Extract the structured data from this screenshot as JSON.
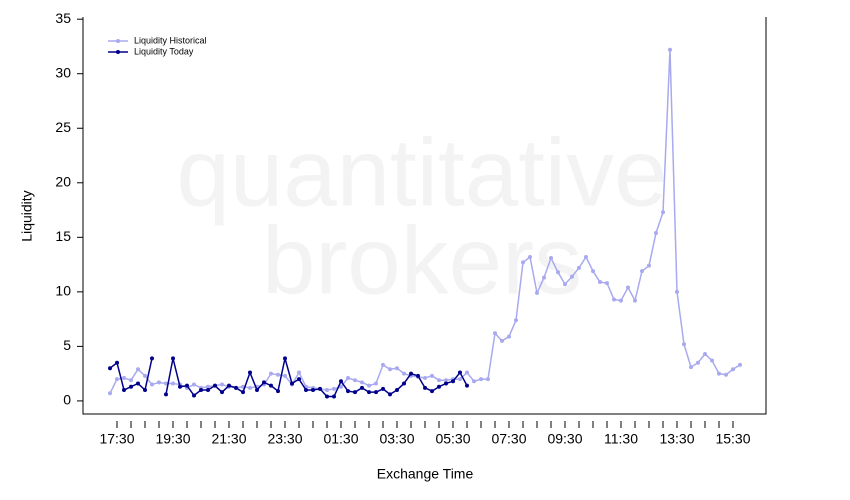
{
  "chart_data": {
    "type": "line",
    "watermark": [
      "quantitative",
      "brokers"
    ],
    "xlabel": "Exchange Time",
    "ylabel": "Liquidity",
    "categories": [
      null,
      "17:30",
      null,
      null,
      null,
      null,
      null,
      null,
      null,
      "19:30",
      null,
      null,
      null,
      null,
      null,
      null,
      null,
      "21:30",
      null,
      null,
      null,
      null,
      null,
      null,
      null,
      "23:30",
      null,
      null,
      null,
      null,
      null,
      null,
      null,
      "01:30",
      null,
      null,
      null,
      null,
      null,
      null,
      null,
      "03:30",
      null,
      null,
      null,
      null,
      null,
      null,
      null,
      "05:30",
      null,
      null,
      null,
      null,
      null,
      null,
      null,
      "07:30",
      null,
      null,
      null,
      null,
      null,
      null,
      null,
      "09:30",
      null,
      null,
      null,
      null,
      null,
      null,
      null,
      "11:30",
      null,
      null,
      null,
      null,
      null,
      null,
      null,
      "13:30",
      null,
      null,
      null,
      null,
      null,
      null,
      null,
      "15:30",
      null
    ],
    "series": [
      {
        "name": "Liquidity Historical",
        "color": "#a9a9f0",
        "values": [
          0.7,
          2.0,
          2.1,
          1.9,
          2.9,
          2.3,
          1.5,
          1.7,
          1.6,
          1.6,
          1.5,
          1.2,
          1.5,
          1.2,
          1.3,
          1.4,
          1.5,
          1.3,
          1.2,
          1.3,
          1.2,
          1.3,
          1.5,
          2.5,
          2.4,
          2.3,
          1.5,
          2.6,
          1.3,
          1.2,
          1.1,
          1.0,
          1.1,
          1.3,
          2.1,
          1.9,
          1.7,
          1.4,
          1.6,
          3.3,
          2.9,
          3.0,
          2.5,
          2.3,
          2.2,
          2.1,
          2.3,
          1.9,
          1.9,
          2.0,
          2.0,
          2.6,
          1.8,
          2.0,
          2.0,
          6.2,
          5.5,
          5.9,
          7.4,
          12.7,
          13.2,
          9.9,
          11.3,
          13.1,
          11.8,
          10.7,
          11.4,
          12.2,
          13.2,
          11.9,
          10.9,
          10.8,
          9.3,
          9.2,
          10.4,
          9.2,
          11.9,
          12.4,
          15.4,
          17.3,
          32.2,
          10.0,
          5.2,
          3.1,
          3.5,
          4.3,
          3.7,
          2.5,
          2.4,
          2.9,
          3.3
        ]
      },
      {
        "name": "Liquidity Today",
        "color": "#00008b",
        "values": [
          3.0,
          3.5,
          1.0,
          1.3,
          1.6,
          1.0,
          3.9,
          null,
          0.6,
          3.9,
          1.3,
          1.4,
          0.5,
          1.0,
          1.0,
          1.4,
          0.8,
          1.4,
          1.2,
          0.8,
          2.6,
          1.0,
          1.7,
          1.4,
          0.9,
          3.9,
          1.6,
          2.0,
          1.0,
          1.0,
          1.1,
          0.4,
          0.4,
          1.8,
          0.9,
          0.8,
          1.2,
          0.8,
          0.8,
          1.1,
          0.6,
          1.0,
          1.6,
          2.5,
          2.3,
          1.2,
          0.9,
          1.3,
          1.6,
          1.8,
          2.6,
          1.4,
          null,
          null,
          null,
          null,
          null,
          null,
          null,
          null,
          null,
          null,
          null,
          null,
          null,
          null,
          null,
          null,
          null,
          null,
          null,
          null,
          null,
          null,
          null,
          null,
          null,
          null,
          null,
          null,
          null,
          null,
          null,
          null,
          null,
          null,
          null,
          null,
          null,
          null,
          null
        ]
      }
    ],
    "ylim": [
      -1.2,
      35.2
    ],
    "yticks": [
      0,
      5,
      10,
      15,
      20,
      25,
      30,
      35
    ],
    "legend": "upper left"
  }
}
